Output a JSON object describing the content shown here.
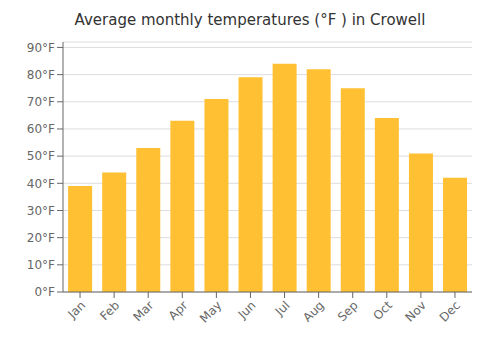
{
  "chart_data": {
    "type": "bar",
    "title": "Average monthly temperatures (°F ) in Crowell",
    "categories": [
      "Jan",
      "Feb",
      "Mar",
      "Apr",
      "May",
      "Jun",
      "Jul",
      "Aug",
      "Sep",
      "Oct",
      "Nov",
      "Dec"
    ],
    "values": [
      39,
      44,
      53,
      63,
      71,
      79,
      84,
      82,
      75,
      64,
      51,
      42
    ],
    "color": "#FFC033",
    "ylim": [
      0,
      92
    ],
    "yticks": [
      {
        "value": 0,
        "label": "0°F"
      },
      {
        "value": 10,
        "label": "10°F"
      },
      {
        "value": 20,
        "label": "20°F"
      },
      {
        "value": 30,
        "label": "30°F"
      },
      {
        "value": 40,
        "label": "40°F"
      },
      {
        "value": 50,
        "label": "50°F"
      },
      {
        "value": 60,
        "label": "60°F"
      },
      {
        "value": 70,
        "label": "70°F"
      },
      {
        "value": 80,
        "label": "80°F"
      },
      {
        "value": 90,
        "label": "90°F"
      }
    ],
    "grid": true
  }
}
